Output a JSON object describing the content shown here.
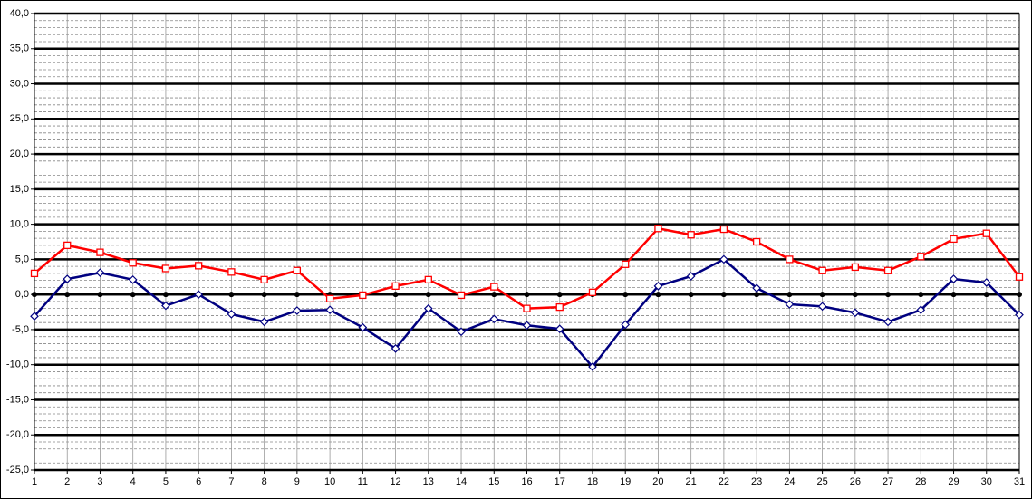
{
  "chart_data": {
    "type": "line",
    "categories": [
      "1",
      "2",
      "3",
      "4",
      "5",
      "6",
      "7",
      "8",
      "9",
      "10",
      "11",
      "12",
      "13",
      "14",
      "15",
      "16",
      "17",
      "18",
      "19",
      "20",
      "21",
      "22",
      "23",
      "24",
      "25",
      "26",
      "27",
      "28",
      "29",
      "30",
      "31"
    ],
    "series": [
      {
        "color": "#000000",
        "marker": "dot",
        "values": [
          0,
          0,
          0,
          0,
          0,
          0,
          0,
          0,
          0,
          0,
          0,
          0,
          0,
          0,
          0,
          0,
          0,
          0,
          0,
          0,
          0,
          0,
          0,
          0,
          0,
          0,
          0,
          0,
          0,
          0,
          0
        ]
      },
      {
        "color": "#ff0000",
        "marker": "square",
        "values": [
          3.0,
          7.0,
          6.0,
          4.5,
          3.7,
          4.1,
          3.2,
          2.1,
          3.4,
          -0.6,
          -0.1,
          1.2,
          2.1,
          -0.1,
          1.1,
          -2.0,
          -1.8,
          0.3,
          4.3,
          9.4,
          8.5,
          9.3,
          7.5,
          5.0,
          3.4,
          3.9,
          3.4,
          5.4,
          7.9,
          8.7,
          2.5
        ]
      },
      {
        "color": "#000080",
        "marker": "diamond",
        "values": [
          -3.1,
          2.2,
          3.1,
          2.1,
          -1.6,
          0.0,
          -2.8,
          -3.9,
          -2.3,
          -2.2,
          -4.7,
          -7.7,
          -2.0,
          -5.3,
          -3.5,
          -4.4,
          -4.9,
          -10.3,
          -4.3,
          1.2,
          2.6,
          5.0,
          0.9,
          -1.4,
          -1.7,
          -2.6,
          -3.9,
          -2.2,
          2.2,
          1.7,
          -2.9
        ]
      }
    ],
    "ylim": [
      -25,
      40
    ],
    "yticks": [
      {
        "value": 40,
        "label": "40,0"
      },
      {
        "value": 35,
        "label": "35,0"
      },
      {
        "value": 30,
        "label": "30,0"
      },
      {
        "value": 25,
        "label": "25,0"
      },
      {
        "value": 20,
        "label": "20,0"
      },
      {
        "value": 15,
        "label": "15,0"
      },
      {
        "value": 10,
        "label": "10,0"
      },
      {
        "value": 5,
        "label": "5,0"
      },
      {
        "value": 0,
        "label": "0,0"
      },
      {
        "value": -5,
        "label": "-5,0"
      },
      {
        "value": -10,
        "label": "-10,0"
      },
      {
        "value": -15,
        "label": "-15,0"
      },
      {
        "value": -20,
        "label": "-20,0"
      },
      {
        "value": -25,
        "label": "-25,0"
      }
    ],
    "yminorticks": [
      -24,
      -23,
      -22,
      -21,
      -19,
      -18,
      -17,
      -16,
      -14,
      -13,
      -12,
      -11,
      -9,
      -8,
      -7,
      -6,
      -4,
      -3,
      -2,
      -1,
      1,
      2,
      3,
      4,
      6,
      7,
      8,
      9,
      11,
      12,
      13,
      14,
      16,
      17,
      18,
      19,
      21,
      22,
      23,
      24,
      26,
      27,
      28,
      29,
      31,
      32,
      33,
      34,
      36,
      37,
      38,
      39
    ],
    "grid": true
  }
}
